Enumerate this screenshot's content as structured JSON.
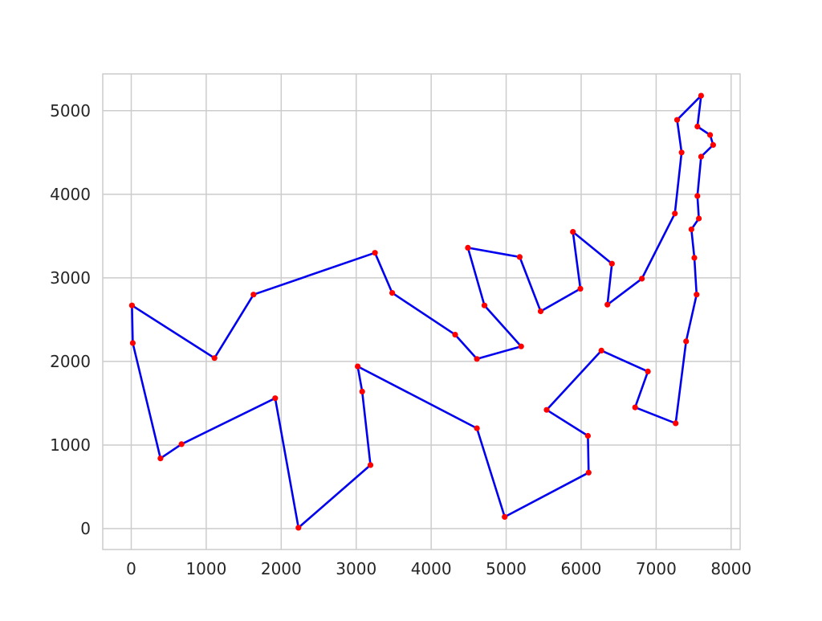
{
  "chart_data": {
    "type": "line",
    "title": "",
    "xlabel": "",
    "ylabel": "",
    "xlim": [
      -380,
      8120
    ],
    "ylim": [
      -250,
      5440
    ],
    "grid": true,
    "x_ticks": [
      0,
      1000,
      2000,
      3000,
      4000,
      5000,
      6000,
      7000,
      8000
    ],
    "y_ticks": [
      0,
      1000,
      2000,
      3000,
      4000,
      5000
    ],
    "colors": {
      "line": "#0000ee",
      "marker": "#ff0000",
      "grid": "#cccccc",
      "axis": "#cccccc"
    },
    "series": [
      {
        "closed": true,
        "x": [
          7600,
          7550,
          7720,
          7760,
          7600,
          7550,
          7570,
          7470,
          7510,
          7540,
          7400,
          7260,
          6720,
          6890,
          6270,
          5540,
          6090,
          6100,
          4980,
          4610,
          3020,
          3080,
          3190,
          2230,
          1920,
          670,
          390,
          20,
          10,
          1110,
          1630,
          3250,
          3480,
          4320,
          4610,
          5200,
          4710,
          4490,
          5180,
          5460,
          5990,
          5890,
          6410,
          6350,
          6810,
          7250,
          7340,
          7280
        ],
        "y": [
          5180,
          4810,
          4710,
          4590,
          4450,
          3980,
          3710,
          3580,
          3240,
          2800,
          2240,
          1260,
          1450,
          1880,
          2130,
          1420,
          1110,
          670,
          140,
          1200,
          1940,
          1640,
          760,
          10,
          1560,
          1010,
          840,
          2220,
          2670,
          2040,
          2800,
          3300,
          2820,
          2320,
          2030,
          2180,
          2670,
          3360,
          3250,
          2600,
          2870,
          3550,
          3170,
          2680,
          2990,
          3770,
          4500,
          4890
        ]
      }
    ]
  }
}
